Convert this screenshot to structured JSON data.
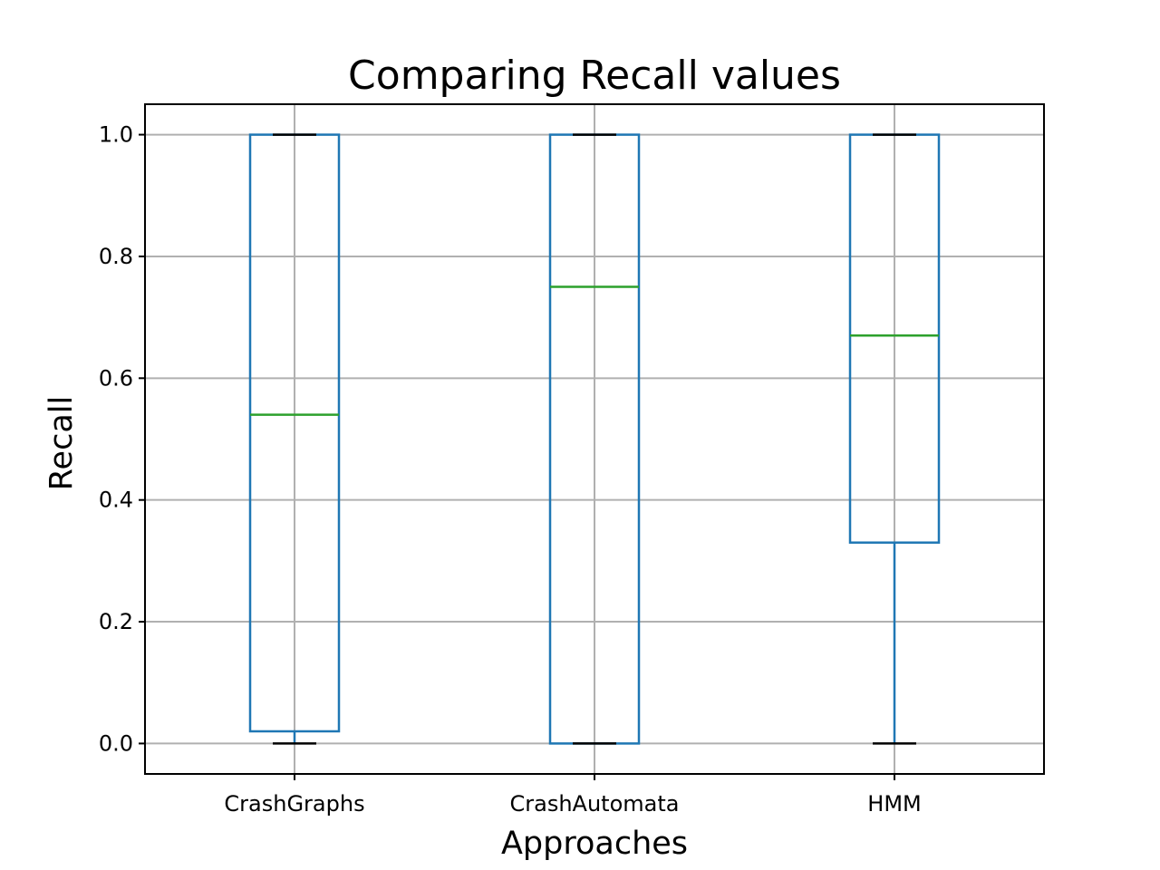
{
  "chart_data": {
    "type": "box",
    "title": "Comparing Recall values",
    "xlabel": "Approaches",
    "ylabel": "Recall",
    "ylim": [
      -0.05,
      1.05
    ],
    "yticks": [
      0.0,
      0.2,
      0.4,
      0.6,
      0.8,
      1.0
    ],
    "ytick_labels": [
      "0.0",
      "0.2",
      "0.4",
      "0.6",
      "0.8",
      "1.0"
    ],
    "grid": true,
    "categories": [
      "CrashGraphs",
      "CrashAutomata",
      "HMM"
    ],
    "boxes": [
      {
        "name": "CrashGraphs",
        "whisker_low": 0.0,
        "q1": 0.02,
        "median": 0.54,
        "q3": 1.0,
        "whisker_high": 1.0
      },
      {
        "name": "CrashAutomata",
        "whisker_low": 0.0,
        "q1": 0.0,
        "median": 0.75,
        "q3": 1.0,
        "whisker_high": 1.0
      },
      {
        "name": "HMM",
        "whisker_low": 0.0,
        "q1": 0.33,
        "median": 0.67,
        "q3": 1.0,
        "whisker_high": 1.0
      }
    ],
    "colors": {
      "box": "#1f77b4",
      "median": "#2ca02c",
      "cap": "#000000",
      "grid": "#b0b0b0"
    }
  }
}
